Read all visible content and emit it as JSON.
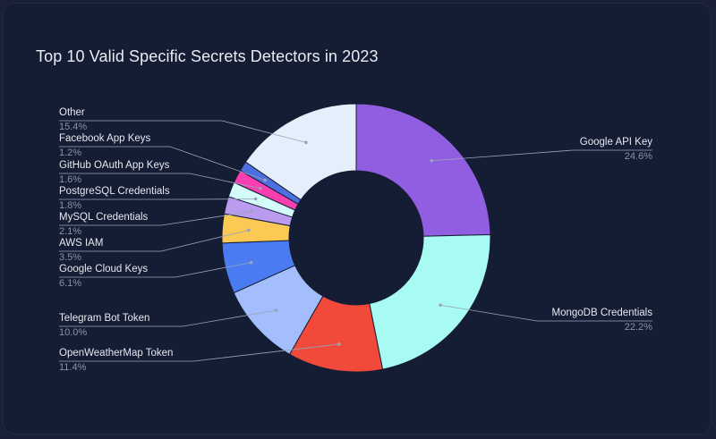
{
  "chart_data": {
    "type": "pie",
    "title": "Top 10 Valid Specific Secrets Detectors in 2023",
    "slices": [
      {
        "name": "Google API Key",
        "value": 24.6,
        "label": "24.6%",
        "color": "#915ee2"
      },
      {
        "name": "MongoDB Credentials",
        "value": 22.2,
        "label": "22.2%",
        "color": "#a7fbf2"
      },
      {
        "name": "OpenWeatherMap Token",
        "value": 11.4,
        "label": "11.4%",
        "color": "#f14a3a"
      },
      {
        "name": "Telegram Bot Token",
        "value": 10.0,
        "label": "10.0%",
        "color": "#a4befd"
      },
      {
        "name": "Google Cloud Keys",
        "value": 6.1,
        "label": "6.1%",
        "color": "#4b7bf0"
      },
      {
        "name": "AWS IAM",
        "value": 3.5,
        "label": "3.5%",
        "color": "#fbc954"
      },
      {
        "name": "MySQL Credentials",
        "value": 2.1,
        "label": "2.1%",
        "color": "#b99bf0"
      },
      {
        "name": "PostgreSQL Credentials",
        "value": 1.8,
        "label": "1.8%",
        "color": "#d3fbf7"
      },
      {
        "name": "GitHub OAuth App Keys",
        "value": 1.6,
        "label": "1.6%",
        "color": "#f93eb0"
      },
      {
        "name": "Facebook App Keys",
        "value": 1.2,
        "label": "1.2%",
        "color": "#4d6fe0"
      },
      {
        "name": "Other",
        "value": 15.4,
        "label": "15.4%",
        "color": "#e5eefb"
      }
    ],
    "inner_radius_ratio": 0.5,
    "legend": "none"
  }
}
